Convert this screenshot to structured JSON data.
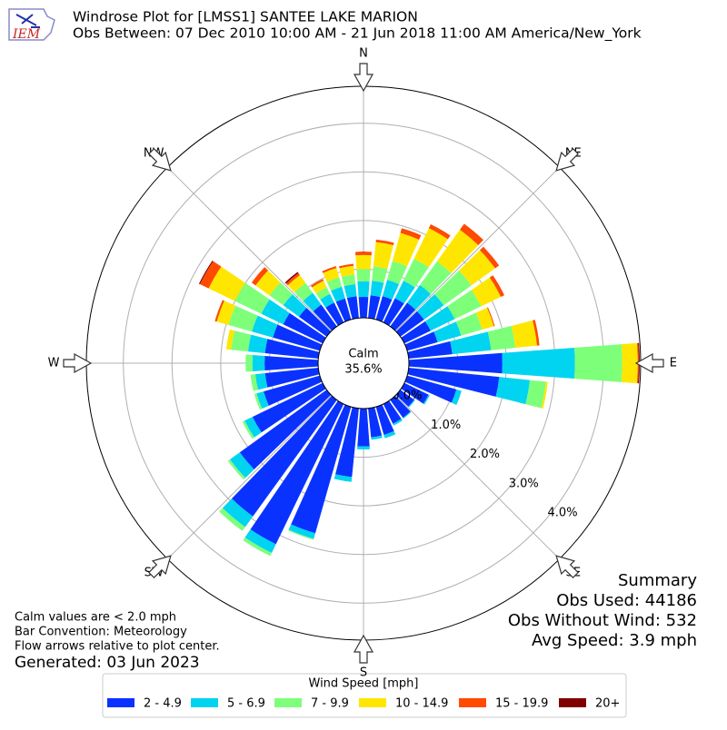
{
  "chart_data": {
    "type": "windrose",
    "logo_text": "IEM",
    "title": "Windrose Plot for [LMSS1] SANTEE LAKE MARION",
    "subtitle": "Obs Between: 07 Dec 2010 10:00 AM - 21 Jun 2018 11:00 AM America/New_York",
    "direction_labels": [
      "N",
      "NE",
      "E",
      "SE",
      "S",
      "SW",
      "W",
      "NW"
    ],
    "calm_text": [
      "Calm",
      "35.6%"
    ],
    "directions": [
      0,
      10,
      20,
      30,
      40,
      50,
      60,
      70,
      80,
      90,
      100,
      110,
      120,
      130,
      140,
      150,
      160,
      170,
      180,
      190,
      200,
      210,
      220,
      230,
      240,
      250,
      260,
      270,
      280,
      290,
      300,
      310,
      320,
      330,
      340,
      350
    ],
    "ylim": [
      0,
      4.76
    ],
    "yticks": [
      {
        "value": 0,
        "label": "0.0%"
      },
      {
        "value": 1,
        "label": "1.0%"
      },
      {
        "value": 2,
        "label": "2.0%"
      },
      {
        "value": 3,
        "label": "3.0%"
      },
      {
        "value": 4,
        "label": "4.0%"
      }
    ],
    "grid": true,
    "legend_title": "Wind Speed [mph]",
    "series": [
      {
        "name": "2 - 4.9",
        "color": "#0a32ff",
        "values": [
          0.43,
          0.47,
          0.5,
          0.55,
          0.6,
          0.6,
          0.6,
          0.65,
          0.9,
          1.92,
          1.87,
          1.05,
          0.55,
          0.35,
          0.45,
          0.45,
          0.6,
          0.6,
          0.78,
          1.42,
          2.7,
          3.2,
          2.95,
          2.2,
          1.6,
          1.2,
          1.1,
          1.1,
          1.1,
          1.0,
          0.9,
          0.7,
          0.55,
          0.45,
          0.45,
          0.45
        ]
      },
      {
        "name": "5 - 6.9",
        "color": "#00d4f0",
        "values": [
          0.32,
          0.3,
          0.35,
          0.4,
          0.45,
          0.5,
          0.55,
          0.5,
          0.8,
          1.49,
          0.63,
          0.11,
          0.03,
          0.02,
          0.02,
          0.04,
          0.07,
          0.05,
          0.06,
          0.1,
          0.12,
          0.2,
          0.27,
          0.25,
          0.18,
          0.15,
          0.2,
          0.25,
          0.35,
          0.45,
          0.5,
          0.4,
          0.3,
          0.2,
          0.25,
          0.25
        ]
      },
      {
        "name": "7 - 9.9",
        "color": "#7dff7a",
        "values": [
          0.25,
          0.3,
          0.4,
          0.5,
          0.6,
          0.7,
          0.6,
          0.45,
          0.5,
          0.97,
          0.33,
          0,
          0,
          0,
          0,
          0,
          0,
          0,
          0,
          0,
          0.02,
          0.07,
          0.1,
          0.05,
          0.05,
          0.05,
          0.1,
          0.14,
          0.35,
          0.5,
          0.6,
          0.35,
          0.25,
          0.15,
          0.2,
          0.2
        ]
      },
      {
        "name": "10 - 14.9",
        "color": "#ffe600",
        "values": [
          0.29,
          0.5,
          0.6,
          0.7,
          0.8,
          0.6,
          0.45,
          0.25,
          0.45,
          0.32,
          0.04,
          0,
          0,
          0,
          0,
          0,
          0,
          0,
          0,
          0,
          0,
          0,
          0,
          0,
          0,
          0,
          0,
          0,
          0.1,
          0.25,
          0.6,
          0.35,
          0.2,
          0.15,
          0.2,
          0.18
        ]
      },
      {
        "name": "15 - 19.9",
        "color": "#ff4a00",
        "values": [
          0.07,
          0.05,
          0.1,
          0.09,
          0.15,
          0.1,
          0.08,
          0.02,
          0.05,
          0.02,
          0,
          0,
          0,
          0,
          0,
          0,
          0,
          0,
          0,
          0,
          0,
          0,
          0,
          0,
          0,
          0,
          0,
          0,
          0,
          0.04,
          0.2,
          0.1,
          0.05,
          0.04,
          0.04,
          0.04
        ]
      },
      {
        "name": "20+",
        "color": "#800000",
        "values": [
          0,
          0,
          0,
          0,
          0,
          0,
          0,
          0,
          0,
          0.02,
          0,
          0,
          0,
          0,
          0,
          0,
          0,
          0,
          0,
          0,
          0,
          0,
          0,
          0,
          0,
          0,
          0,
          0,
          0,
          0,
          0.02,
          0,
          0.03,
          0,
          0,
          0
        ]
      }
    ],
    "summary": [
      "Summary",
      "Obs Used: 44186",
      "Obs Without Wind: 532",
      "Avg Speed: 3.9 mph"
    ],
    "notes": [
      "Calm values are < 2.0 mph",
      "Bar Convention: Meteorology",
      "Flow arrows relative to plot center."
    ],
    "generated": "Generated: 03 Jun 2023"
  }
}
